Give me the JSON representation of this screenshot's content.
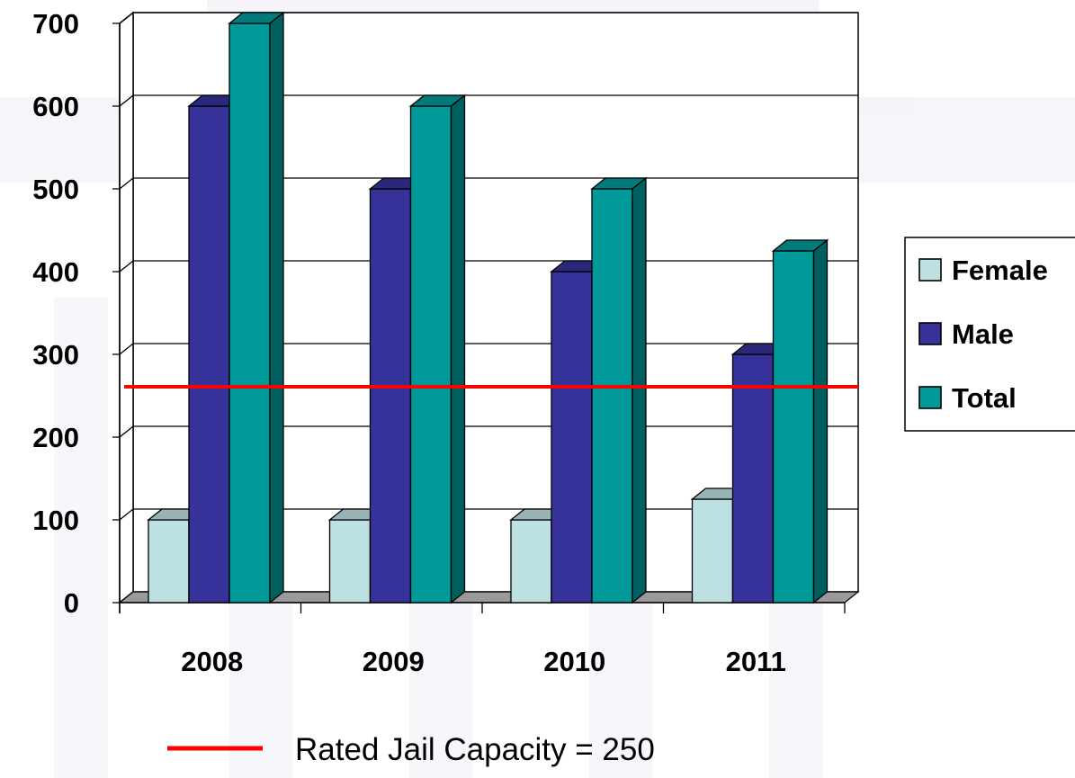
{
  "chart_data": {
    "type": "bar",
    "categories": [
      "2008",
      "2009",
      "2010",
      "2011"
    ],
    "series": [
      {
        "name": "Female",
        "values": [
          100,
          100,
          100,
          125
        ],
        "color": "#bde0e2"
      },
      {
        "name": "Male",
        "values": [
          600,
          500,
          400,
          300
        ],
        "color": "#36329a"
      },
      {
        "name": "Total",
        "values": [
          700,
          600,
          500,
          425
        ],
        "color": "#009999"
      }
    ],
    "ylim": [
      0,
      700
    ],
    "y_ticks": [
      0,
      100,
      200,
      300,
      400,
      500,
      600,
      700
    ],
    "grid": true,
    "legend_position": "right",
    "reference_line": {
      "value": 250,
      "color": "#ff0000",
      "label": "Rated Jail Capacity = 250"
    },
    "bar_style": "3d"
  }
}
